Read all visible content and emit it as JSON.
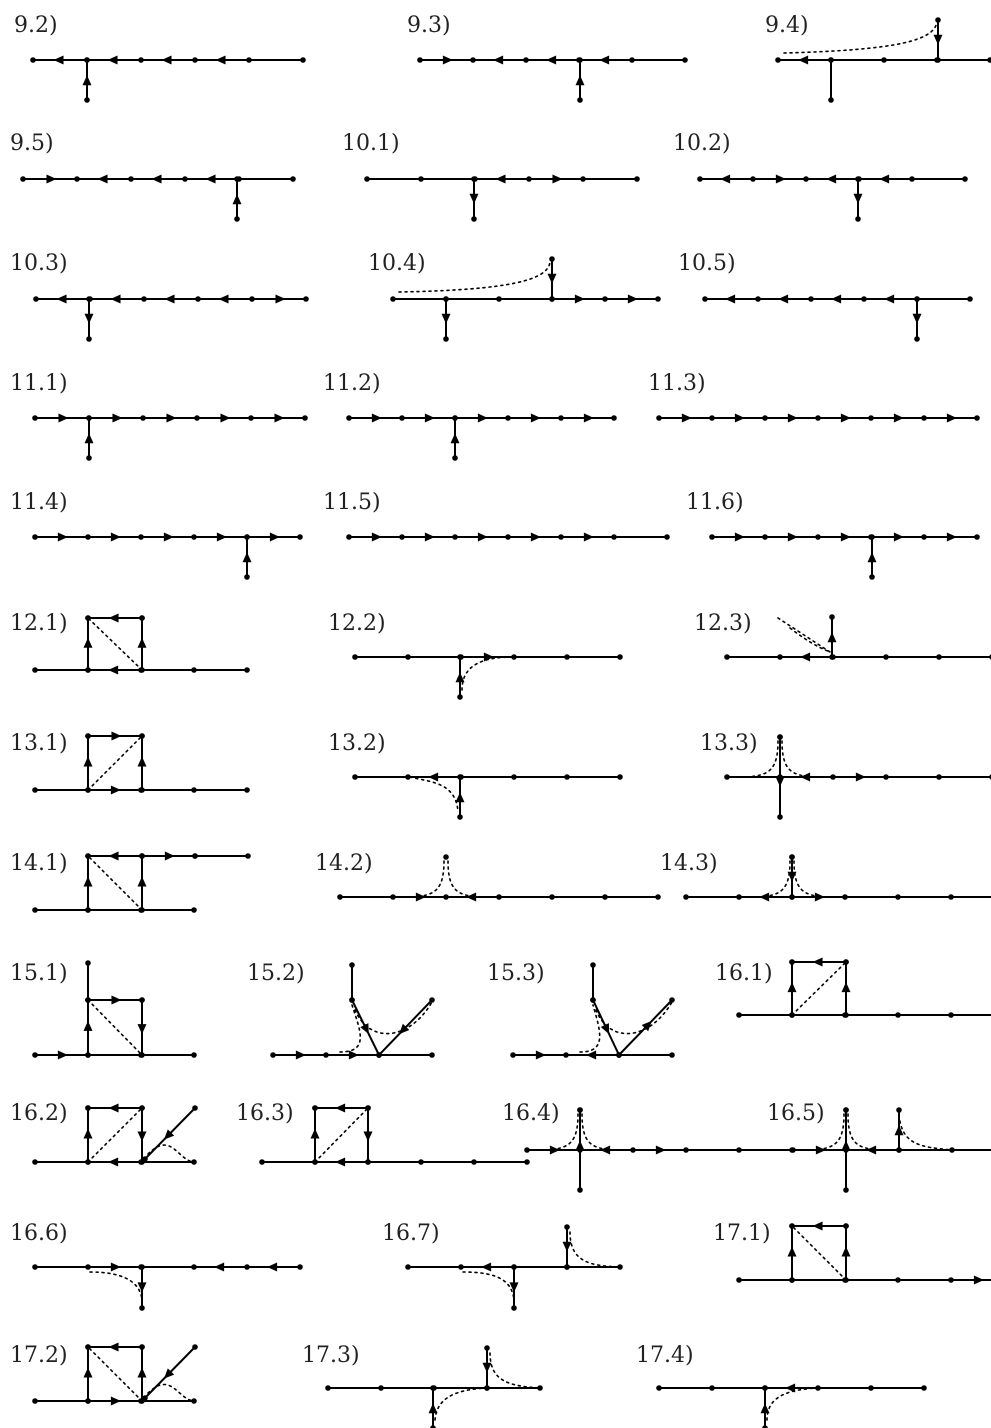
{
  "diagrams": [
    {
      "label": "9.2)"
    },
    {
      "label": "9.3)"
    },
    {
      "label": "9.4)"
    },
    {
      "label": "9.5)"
    },
    {
      "label": "10.1)"
    },
    {
      "label": "10.2)"
    },
    {
      "label": "10.3)"
    },
    {
      "label": "10.4)"
    },
    {
      "label": "10.5)"
    },
    {
      "label": "11.1)"
    },
    {
      "label": "11.2)"
    },
    {
      "label": "11.3)"
    },
    {
      "label": "11.4)"
    },
    {
      "label": "11.5)"
    },
    {
      "label": "11.6)"
    },
    {
      "label": "12.1)"
    },
    {
      "label": "12.2)"
    },
    {
      "label": "12.3)"
    },
    {
      "label": "13.1)"
    },
    {
      "label": "13.2)"
    },
    {
      "label": "13.3)"
    },
    {
      "label": "14.1)"
    },
    {
      "label": "14.2)"
    },
    {
      "label": "14.3)"
    },
    {
      "label": "15.1)"
    },
    {
      "label": "15.2)"
    },
    {
      "label": "15.3)"
    },
    {
      "label": "16.1)"
    },
    {
      "label": "16.2)"
    },
    {
      "label": "16.3)"
    },
    {
      "label": "16.4)"
    },
    {
      "label": "16.5)"
    },
    {
      "label": "16.6)"
    },
    {
      "label": "16.7)"
    },
    {
      "label": "17.1)"
    },
    {
      "label": "17.2)"
    },
    {
      "label": "17.3)"
    },
    {
      "label": "17.4)"
    }
  ]
}
